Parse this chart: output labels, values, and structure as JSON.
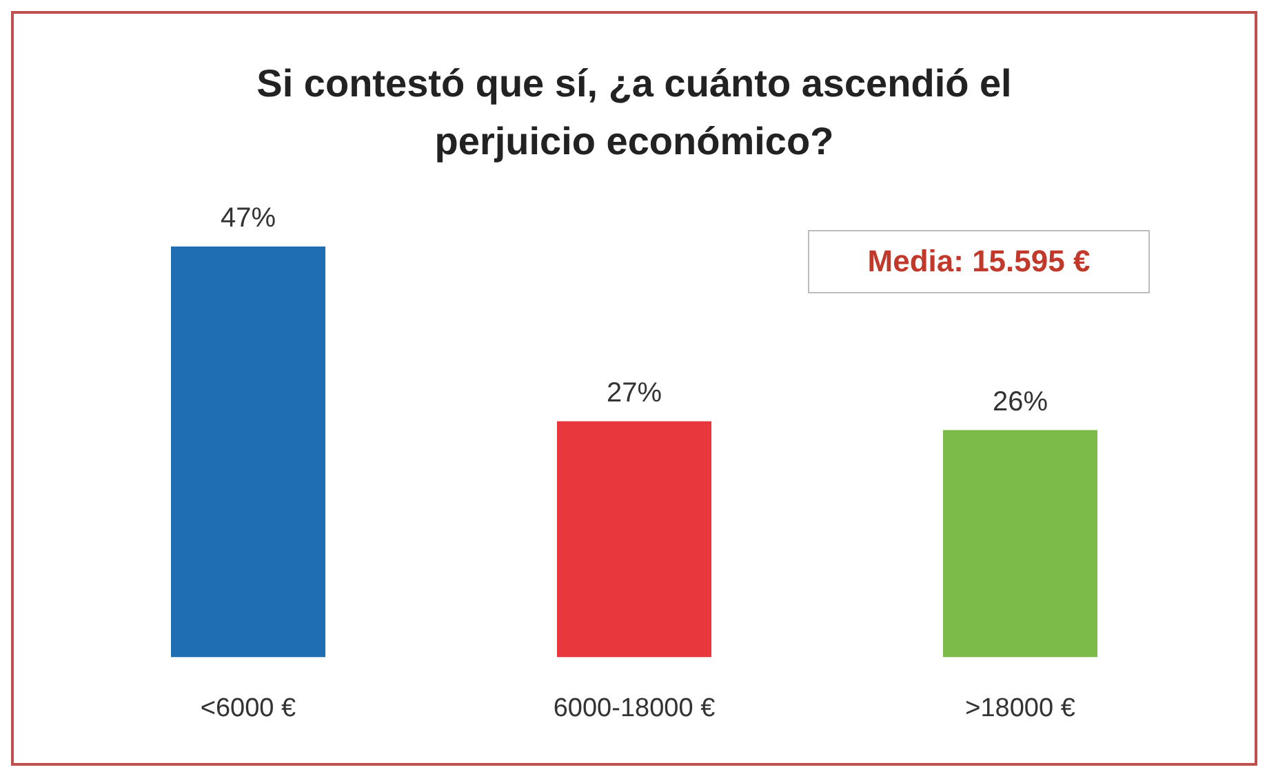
{
  "chart_data": {
    "type": "bar",
    "title": "Si contestó que sí, ¿a cuánto ascendió el perjuicio económico?",
    "categories": [
      "<6000 €",
      "6000-18000 €",
      ">18000 €"
    ],
    "values": [
      47,
      27,
      26
    ],
    "value_labels": [
      "47%",
      "27%",
      "26%"
    ],
    "colors": [
      "#1f6db3",
      "#e8383d",
      "#7cba4a"
    ],
    "annotations": [
      "Media: 15.595 €"
    ]
  }
}
